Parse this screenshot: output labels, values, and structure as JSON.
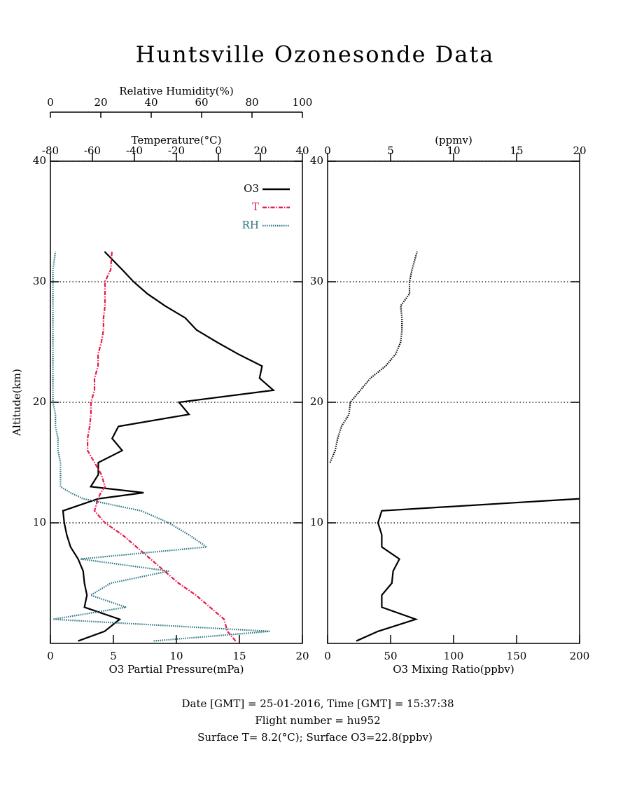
{
  "title": "Huntsville Ozonesonde Data",
  "footer": [
    "Date [GMT] = 25-01-2016,  Time [GMT] = 15:37:38",
    "Flight number = hu952",
    "Surface T= 8.2(°C); Surface O3=22.8(ppbv)"
  ],
  "chart_data": [
    {
      "type": "line",
      "xlabel": "O3 Partial Pressure(mPa)",
      "ylabel": "Altitude(km)",
      "xlim": [
        0,
        20
      ],
      "xticks": [
        0,
        5,
        10,
        15,
        20
      ],
      "x2label": "Temperature(°C)",
      "x2lim": [
        -80,
        40
      ],
      "x2ticks": [
        -80,
        -60,
        -40,
        -20,
        0,
        20,
        40
      ],
      "x3label": "Relative Humidity(%)",
      "x3lim": [
        0,
        100
      ],
      "x3ticks": [
        0,
        20,
        40,
        60,
        80,
        100
      ],
      "ylim": [
        0,
        40
      ],
      "yticks": [
        10,
        20,
        30,
        40
      ],
      "grid": true,
      "legend": "top-right",
      "altitude": [
        0.2,
        1,
        2,
        3,
        4,
        5,
        6,
        7,
        8,
        9,
        10,
        11,
        12,
        12.5,
        13,
        14,
        15,
        16,
        17,
        18,
        19,
        20,
        21,
        22,
        23,
        24,
        25,
        26,
        27,
        28,
        29,
        30,
        31,
        32.5
      ],
      "series": [
        {
          "name": "O3",
          "color": "#000000",
          "axis": "x",
          "style": "solid",
          "values": [
            2.2,
            4.3,
            5.5,
            2.7,
            2.9,
            2.7,
            2.6,
            2.2,
            1.6,
            1.3,
            1.1,
            1.0,
            3.8,
            7.4,
            3.2,
            3.8,
            3.8,
            5.7,
            4.9,
            5.4,
            11.0,
            10.2,
            17.7,
            16.6,
            16.8,
            14.9,
            13.2,
            11.6,
            10.7,
            9.1,
            7.7,
            6.6,
            5.7,
            4.3
          ]
        },
        {
          "name": "T",
          "color": "#e8194a",
          "axis": "x2",
          "style": "dashdot",
          "values": [
            8.2,
            4.3,
            2.7,
            -4,
            -10.7,
            -19,
            -25.7,
            -32.3,
            -39,
            -45.7,
            -54,
            -59,
            -57.3,
            -56,
            -54,
            -55.7,
            -59,
            -62.3,
            -62.3,
            -61.3,
            -60.7,
            -60.7,
            -59,
            -59,
            -57.3,
            -57.3,
            -55.7,
            -54.7,
            -54.7,
            -54,
            -54,
            -54,
            -51.3,
            -50.7
          ]
        },
        {
          "name": "RH",
          "color": "#2a7480",
          "axis": "x3",
          "style": "dotted",
          "values": [
            41,
            87,
            1,
            30,
            16,
            24,
            47,
            12,
            62,
            55,
            47,
            36,
            13,
            8,
            4,
            4,
            4,
            3,
            3,
            2,
            2,
            1,
            1,
            1,
            1,
            1,
            1,
            1,
            1,
            1,
            1,
            1,
            1,
            2
          ]
        }
      ]
    },
    {
      "type": "line",
      "xlabel": "O3 Mixing Ratio(ppbv)",
      "xlim": [
        0,
        200
      ],
      "xticks": [
        0,
        50,
        100,
        150,
        200
      ],
      "x2label": "(ppmv)",
      "x2lim": [
        0,
        20
      ],
      "x2ticks": [
        0,
        5,
        10,
        15,
        20
      ],
      "ylim": [
        0,
        40
      ],
      "yticks": [
        10,
        20,
        30,
        40
      ],
      "grid": true,
      "altitude": [
        0.2,
        1,
        2,
        3,
        4,
        5,
        6,
        7,
        8,
        9,
        10,
        11,
        12,
        15,
        16,
        17,
        18,
        19,
        20,
        21,
        22,
        23,
        24,
        25,
        26,
        27,
        28,
        29,
        30,
        31,
        32.5
      ],
      "series": [
        {
          "color": "#000000",
          "axis": "x",
          "style": "solid",
          "values": [
            22.8,
            40,
            70,
            43,
            43,
            51,
            52,
            57,
            43,
            43,
            40,
            43,
            200,
            null,
            null,
            null,
            null,
            null,
            null,
            null,
            null,
            null,
            null,
            null,
            null,
            null,
            null,
            null,
            null,
            null,
            null
          ]
        },
        {
          "color": "#000000",
          "axis": "x2",
          "style": "dotted",
          "values": [
            null,
            null,
            null,
            null,
            null,
            null,
            null,
            null,
            null,
            null,
            null,
            null,
            null,
            0.2,
            0.6,
            0.8,
            1.1,
            1.7,
            1.8,
            2.6,
            3.4,
            4.6,
            5.4,
            5.8,
            5.9,
            5.9,
            5.8,
            6.5,
            6.5,
            6.7,
            7.1
          ]
        }
      ]
    }
  ]
}
